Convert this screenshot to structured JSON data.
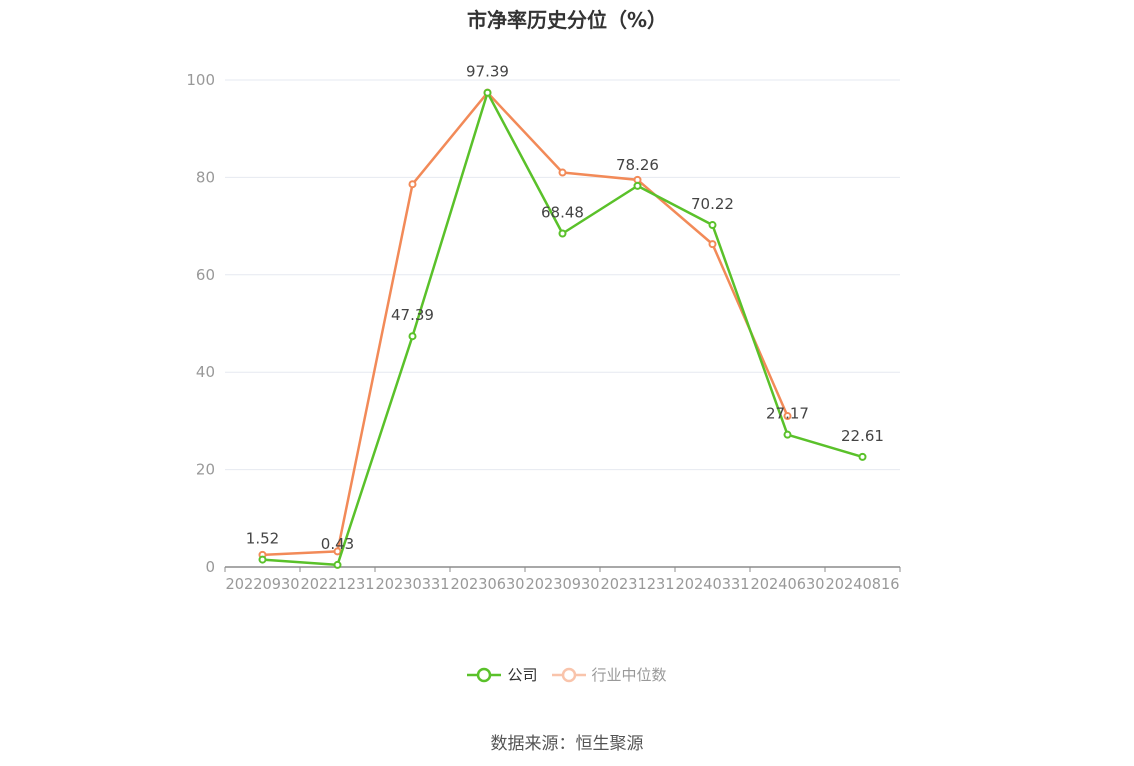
{
  "chart_data": {
    "type": "line",
    "title": "市净率历史分位（%）",
    "categories": [
      "20220930",
      "20221231",
      "20230331",
      "20230630",
      "20230930",
      "20231231",
      "20240331",
      "20240630",
      "20240816"
    ],
    "series": [
      {
        "name": "公司",
        "color": "#5ac12a",
        "values": [
          1.52,
          0.43,
          47.39,
          97.39,
          68.48,
          78.26,
          70.22,
          27.17,
          22.61
        ],
        "labels": [
          "1.52",
          "0.43",
          "47.39",
          "97.39",
          "68.48",
          "78.26",
          "70.22",
          "27.17",
          "22.61"
        ]
      },
      {
        "name": "行业中位数",
        "color": "#f28a58",
        "values": [
          2.5,
          3.2,
          78.6,
          97.4,
          81.0,
          79.5,
          66.3,
          31.0,
          null
        ]
      }
    ],
    "ylim": [
      0,
      100
    ],
    "yticks": [
      "0",
      "20",
      "40",
      "60",
      "80",
      "100"
    ],
    "grid": true,
    "legend_position": "bottom"
  },
  "source": "数据来源：恒生聚源"
}
